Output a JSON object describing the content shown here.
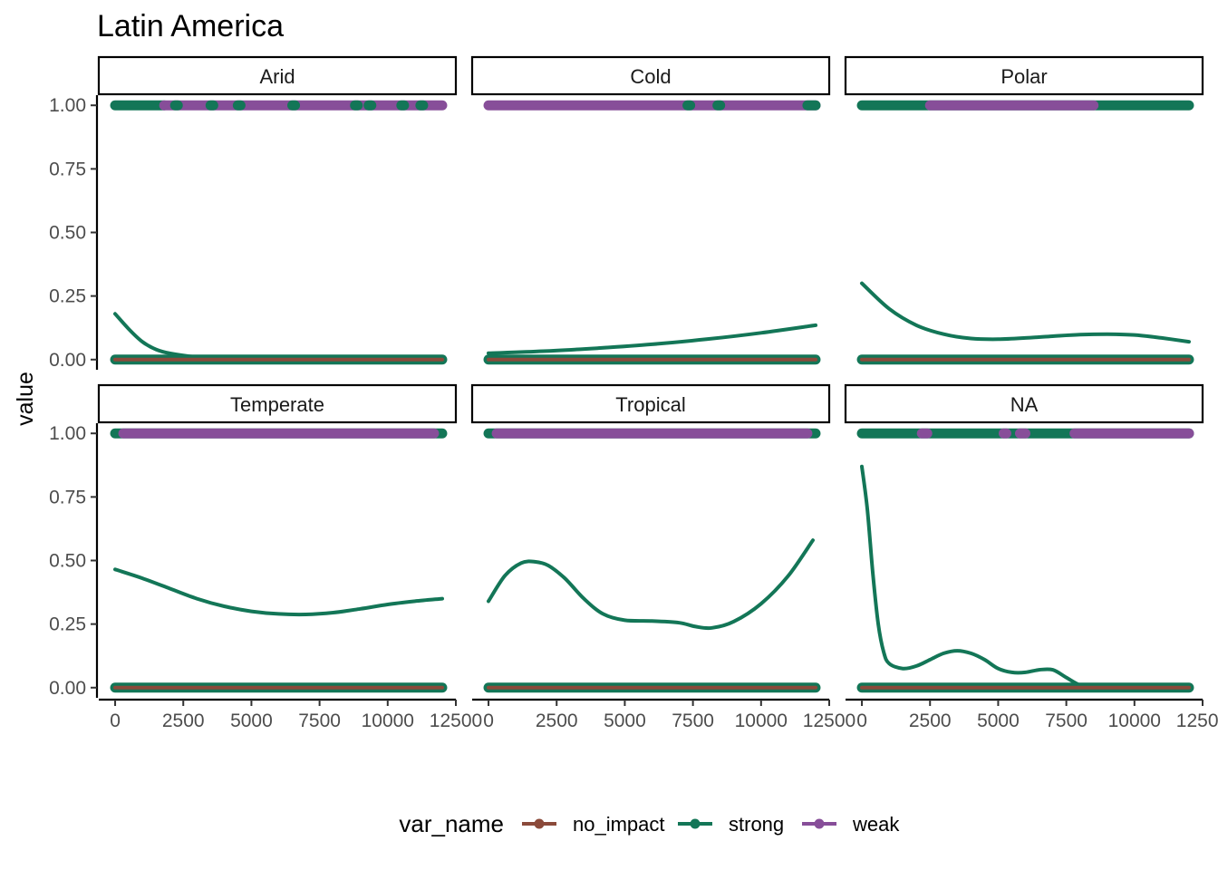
{
  "chart_data": {
    "type": "line",
    "title": "Latin America",
    "xlabel": "",
    "ylabel": "value",
    "xlim": [
      -600,
      12500
    ],
    "ylim": [
      -0.04,
      1.04
    ],
    "x_ticks": [
      0,
      2500,
      5000,
      7500,
      10000,
      12500
    ],
    "x_tick_labels": [
      "0",
      "2500",
      "5000",
      "7500",
      "10000",
      "12500"
    ],
    "y_ticks": [
      0,
      0.25,
      0.5,
      0.75,
      1
    ],
    "y_tick_labels": [
      "0.00",
      "0.25",
      "0.50",
      "0.75",
      "1.00"
    ],
    "grid": false,
    "legend": {
      "title": "var_name",
      "position": "bottom",
      "entries": [
        {
          "name": "no_impact",
          "color": "#8B4A3A"
        },
        {
          "name": "strong",
          "color": "#137657"
        },
        {
          "name": "weak",
          "color": "#874E99"
        }
      ]
    },
    "point_range": [
      0,
      12000
    ],
    "panels": [
      {
        "name": "Arid",
        "top_points": [
          {
            "series": "strong",
            "from": 0,
            "to": 1800
          },
          {
            "series": "weak",
            "from": 1800,
            "to": 12000
          },
          {
            "series": "strong",
            "from": 2200,
            "to": 2300
          },
          {
            "series": "strong",
            "from": 3500,
            "to": 3600
          },
          {
            "series": "strong",
            "from": 4500,
            "to": 4600
          },
          {
            "series": "strong",
            "from": 6500,
            "to": 6600
          },
          {
            "series": "strong",
            "from": 8800,
            "to": 8900
          },
          {
            "series": "strong",
            "from": 9300,
            "to": 9400
          },
          {
            "series": "strong",
            "from": 10500,
            "to": 10600
          },
          {
            "series": "strong",
            "from": 11200,
            "to": 11300
          }
        ],
        "series": [
          {
            "name": "strong",
            "x": [
              0,
              500,
              1000,
              1500,
              2000,
              3000,
              4000,
              6000,
              8000,
              10000,
              12000
            ],
            "values": [
              0.18,
              0.12,
              0.07,
              0.04,
              0.025,
              0.01,
              0.004,
              -0.002,
              -0.004,
              -0.002,
              0.0
            ]
          },
          {
            "name": "no_impact",
            "x": [
              0,
              12000
            ],
            "values": [
              0.0,
              0.0
            ]
          }
        ]
      },
      {
        "name": "Cold",
        "top_points": [
          {
            "series": "weak",
            "from": 0,
            "to": 12000
          },
          {
            "series": "strong",
            "from": 7300,
            "to": 7400
          },
          {
            "series": "strong",
            "from": 8400,
            "to": 8500
          },
          {
            "series": "strong",
            "from": 11700,
            "to": 12000
          }
        ],
        "series": [
          {
            "name": "strong",
            "x": [
              0,
              2000,
              4000,
              6000,
              8000,
              10000,
              12000
            ],
            "values": [
              0.025,
              0.033,
              0.045,
              0.06,
              0.08,
              0.105,
              0.135
            ]
          },
          {
            "name": "no_impact",
            "x": [
              0,
              12000
            ],
            "values": [
              0.0,
              0.0
            ]
          }
        ]
      },
      {
        "name": "Polar",
        "top_points": [
          {
            "series": "strong",
            "from": 0,
            "to": 12000
          },
          {
            "series": "weak",
            "from": 2500,
            "to": 8500
          }
        ],
        "series": [
          {
            "name": "strong",
            "x": [
              0,
              1000,
              2000,
              3000,
              4000,
              5000,
              6000,
              7000,
              8000,
              9000,
              10000,
              11000,
              12000
            ],
            "values": [
              0.3,
              0.2,
              0.135,
              0.1,
              0.083,
              0.08,
              0.085,
              0.092,
              0.098,
              0.1,
              0.097,
              0.085,
              0.07
            ]
          },
          {
            "name": "no_impact",
            "x": [
              0,
              12000
            ],
            "values": [
              0.0,
              0.0
            ]
          }
        ]
      },
      {
        "name": "Temperate",
        "top_points": [
          {
            "series": "strong",
            "from": 0,
            "to": 12000
          },
          {
            "series": "weak",
            "from": 300,
            "to": 11700
          }
        ],
        "series": [
          {
            "name": "strong",
            "x": [
              0,
              1000,
              2000,
              3000,
              4000,
              5000,
              6000,
              7000,
              8000,
              9000,
              10000,
              11000,
              12000
            ],
            "values": [
              0.465,
              0.43,
              0.39,
              0.35,
              0.32,
              0.3,
              0.29,
              0.288,
              0.295,
              0.31,
              0.327,
              0.34,
              0.35
            ]
          },
          {
            "name": "no_impact",
            "x": [
              0,
              12000
            ],
            "values": [
              0.0,
              0.0
            ]
          }
        ]
      },
      {
        "name": "Tropical",
        "top_points": [
          {
            "series": "strong",
            "from": 0,
            "to": 12000
          },
          {
            "series": "weak",
            "from": 300,
            "to": 11700
          }
        ],
        "series": [
          {
            "name": "strong",
            "x": [
              0,
              600,
              1200,
              1700,
              2200,
              2800,
              3500,
              4200,
              5000,
              6000,
              7000,
              7600,
              8200,
              9000,
              10000,
              11000,
              11900
            ],
            "values": [
              0.34,
              0.44,
              0.49,
              0.495,
              0.48,
              0.43,
              0.35,
              0.29,
              0.265,
              0.262,
              0.255,
              0.24,
              0.235,
              0.26,
              0.33,
              0.44,
              0.58
            ]
          },
          {
            "name": "no_impact",
            "x": [
              0,
              12000
            ],
            "values": [
              0.0,
              0.0
            ]
          }
        ]
      },
      {
        "name": "NA",
        "top_points": [
          {
            "series": "strong",
            "from": 0,
            "to": 12000
          },
          {
            "series": "weak",
            "from": 2200,
            "to": 2400
          },
          {
            "series": "weak",
            "from": 5200,
            "to": 5300
          },
          {
            "series": "weak",
            "from": 5800,
            "to": 6000
          },
          {
            "series": "weak",
            "from": 7800,
            "to": 12000
          }
        ],
        "series": [
          {
            "name": "strong",
            "x": [
              0,
              200,
              400,
              600,
              800,
              1000,
              1500,
              2000,
              2500,
              3000,
              3500,
              4000,
              4500,
              5000,
              5500,
              6000,
              6500,
              7000,
              7500,
              8000,
              8500,
              9000,
              10000,
              11000,
              12000
            ],
            "values": [
              0.87,
              0.7,
              0.45,
              0.25,
              0.14,
              0.095,
              0.075,
              0.085,
              0.11,
              0.135,
              0.145,
              0.135,
              0.11,
              0.075,
              0.06,
              0.06,
              0.07,
              0.07,
              0.04,
              0.01,
              0.0,
              -0.003,
              -0.003,
              -0.002,
              0.0
            ]
          },
          {
            "name": "no_impact",
            "x": [
              0,
              12000
            ],
            "values": [
              0.0,
              0.0
            ]
          }
        ]
      }
    ]
  }
}
